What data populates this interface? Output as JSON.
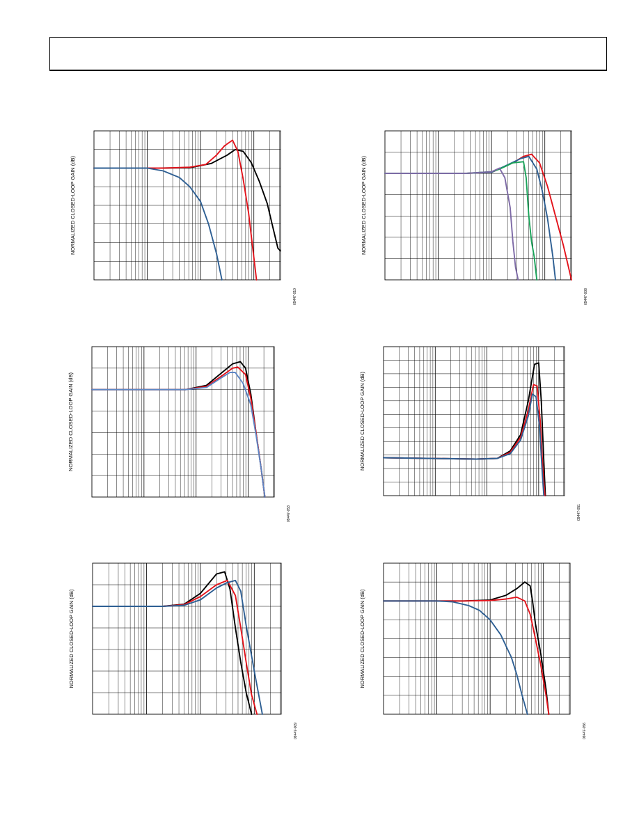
{
  "page": {
    "header_text": ""
  },
  "colors": {
    "black": "#000000",
    "red": "#e3131b",
    "blue": "#2e5f93",
    "light_blue": "#5d86c4",
    "green": "#1aa35a",
    "purple": "#7d6aa6",
    "grid": "#000000"
  },
  "chart_data": [
    {
      "type": "line",
      "ylabel": "NORMALIZED CLOSED-LOOP GAIN (dB)",
      "figure_id": "09447-010",
      "x_scale": "log",
      "xlim": [
        0,
        3.5
      ],
      "ylim": [
        0,
        8
      ],
      "grid": true,
      "series": [
        {
          "color": "black",
          "x": [
            0.0,
            1.2,
            1.8,
            2.2,
            2.5,
            2.65,
            2.8,
            2.95,
            3.1,
            3.25,
            3.35,
            3.45,
            3.5
          ],
          "y": [
            6.0,
            6.0,
            6.02,
            6.25,
            6.7,
            7.0,
            6.9,
            6.3,
            5.3,
            4.1,
            2.9,
            1.7,
            1.55
          ]
        },
        {
          "color": "red",
          "x": [
            0.0,
            1.3,
            1.8,
            2.1,
            2.3,
            2.45,
            2.6,
            2.7,
            2.8,
            2.9,
            3.0,
            3.05
          ],
          "y": [
            6.0,
            6.0,
            6.05,
            6.2,
            6.7,
            7.2,
            7.5,
            6.9,
            5.4,
            3.6,
            1.2,
            0.0
          ]
        },
        {
          "color": "blue",
          "x": [
            0.0,
            1.0,
            1.3,
            1.6,
            1.8,
            2.0,
            2.15,
            2.3,
            2.4
          ],
          "y": [
            6.0,
            6.0,
            5.85,
            5.5,
            5.0,
            4.2,
            3.0,
            1.4,
            0.0
          ]
        }
      ]
    },
    {
      "type": "line",
      "ylabel": "NORMALIZED CLOSED-LOOP GAIN (dB)",
      "figure_id": "09447-008",
      "x_scale": "log",
      "xlim": [
        0,
        3.5
      ],
      "ylim": [
        0,
        7
      ],
      "grid": true,
      "series": [
        {
          "color": "red",
          "x": [
            0.0,
            1.5,
            2.0,
            2.4,
            2.6,
            2.75,
            2.9,
            3.05,
            3.2,
            3.35,
            3.5
          ],
          "y": [
            5.0,
            5.0,
            5.05,
            5.5,
            5.8,
            5.9,
            5.5,
            4.4,
            3.0,
            1.6,
            0.0
          ]
        },
        {
          "color": "blue",
          "x": [
            0.0,
            1.5,
            2.0,
            2.3,
            2.55,
            2.7,
            2.85,
            2.95,
            3.05,
            3.15,
            3.2
          ],
          "y": [
            5.0,
            5.0,
            5.05,
            5.4,
            5.7,
            5.8,
            5.2,
            4.2,
            2.9,
            1.1,
            0.0
          ]
        },
        {
          "color": "green",
          "x": [
            0.0,
            1.5,
            2.0,
            2.15,
            2.4,
            2.6,
            2.65,
            2.7,
            2.75,
            2.8,
            2.85
          ],
          "y": [
            5.0,
            5.0,
            5.08,
            5.2,
            5.5,
            5.55,
            4.8,
            3.0,
            1.8,
            1.1,
            0.0
          ]
        },
        {
          "color": "purple",
          "x": [
            0.0,
            1.5,
            2.0,
            2.15,
            2.25,
            2.35,
            2.4,
            2.45,
            2.5
          ],
          "y": [
            5.0,
            5.0,
            5.08,
            5.25,
            4.8,
            3.4,
            1.8,
            0.6,
            0.0
          ]
        }
      ]
    },
    {
      "type": "line",
      "ylabel": "NORMALIZED CLOSED-LOOP GAIN (dB)",
      "figure_id": "09447-053",
      "x_scale": "log",
      "xlim": [
        0,
        3.5
      ],
      "ylim": [
        0,
        7
      ],
      "grid": true,
      "series": [
        {
          "color": "black",
          "x": [
            0.0,
            1.8,
            2.2,
            2.5,
            2.7,
            2.85,
            2.95,
            3.05,
            3.15,
            3.25,
            3.32
          ],
          "y": [
            5.0,
            5.0,
            5.2,
            5.8,
            6.2,
            6.3,
            6.0,
            4.8,
            3.0,
            1.3,
            0.0
          ]
        },
        {
          "color": "red",
          "x": [
            0.0,
            1.8,
            2.2,
            2.5,
            2.7,
            2.8,
            2.95,
            3.05,
            3.15,
            3.25,
            3.32
          ],
          "y": [
            5.0,
            5.0,
            5.15,
            5.65,
            6.0,
            6.05,
            5.7,
            4.6,
            3.0,
            1.3,
            0.0
          ]
        },
        {
          "color": "light_blue",
          "x": [
            0.0,
            1.8,
            2.2,
            2.45,
            2.65,
            2.75,
            2.9,
            3.05,
            3.15,
            3.25,
            3.32
          ],
          "y": [
            5.0,
            5.0,
            5.1,
            5.5,
            5.8,
            5.8,
            5.3,
            4.3,
            2.9,
            1.3,
            0.0
          ]
        }
      ]
    },
    {
      "type": "line",
      "ylabel": "NORMALIZED CLOSED-LOOP GAIN (dB)",
      "figure_id": "09447-051",
      "x_scale": "log",
      "xlim": [
        0,
        3.5
      ],
      "ylim": [
        0,
        11
      ],
      "grid": true,
      "series": [
        {
          "color": "black",
          "x": [
            0.0,
            1.8,
            2.2,
            2.45,
            2.65,
            2.8,
            2.92,
            3.0,
            3.05,
            3.1,
            3.13
          ],
          "y": [
            2.8,
            2.7,
            2.75,
            3.3,
            4.5,
            7.0,
            9.7,
            9.8,
            7.0,
            2.5,
            0.0
          ]
        },
        {
          "color": "red",
          "x": [
            0.0,
            1.8,
            2.2,
            2.45,
            2.65,
            2.8,
            2.9,
            2.97,
            3.03,
            3.08,
            3.12
          ],
          "y": [
            2.8,
            2.7,
            2.75,
            3.2,
            4.3,
            6.3,
            8.2,
            8.1,
            5.5,
            2.0,
            0.0
          ]
        },
        {
          "color": "blue",
          "x": [
            0.0,
            1.8,
            2.2,
            2.45,
            2.65,
            2.8,
            2.88,
            2.95,
            3.02,
            3.07,
            3.1
          ],
          "y": [
            2.8,
            2.7,
            2.75,
            3.1,
            4.1,
            5.9,
            7.5,
            7.3,
            5.0,
            1.6,
            0.0
          ]
        }
      ]
    },
    {
      "type": "line",
      "ylabel": "NORMALIZED CLOSED-LOOP GAIN (dB)",
      "figure_id": "09447-009",
      "x_scale": "log",
      "xlim": [
        0,
        3.5
      ],
      "ylim": [
        0,
        7
      ],
      "grid": true,
      "series": [
        {
          "color": "black",
          "x": [
            0.0,
            1.3,
            1.7,
            2.0,
            2.3,
            2.45,
            2.55,
            2.65,
            2.75,
            2.85,
            2.95
          ],
          "y": [
            5.0,
            5.0,
            5.1,
            5.6,
            6.5,
            6.6,
            5.8,
            4.0,
            2.4,
            1.0,
            0.0
          ]
        },
        {
          "color": "red",
          "x": [
            0.0,
            1.3,
            1.7,
            2.0,
            2.3,
            2.5,
            2.65,
            2.75,
            2.85,
            2.95,
            3.05
          ],
          "y": [
            5.0,
            5.0,
            5.08,
            5.45,
            6.0,
            6.2,
            5.5,
            4.0,
            2.4,
            0.9,
            0.0
          ]
        },
        {
          "color": "blue",
          "x": [
            0.0,
            1.3,
            1.7,
            2.0,
            2.3,
            2.5,
            2.65,
            2.75,
            2.85,
            3.0,
            3.15
          ],
          "y": [
            5.0,
            5.0,
            5.05,
            5.3,
            5.85,
            6.1,
            6.2,
            5.7,
            4.1,
            2.0,
            0.0
          ]
        }
      ]
    },
    {
      "type": "line",
      "ylabel": "NORMALIZED CLOSED-LOOP GAIN (dB)",
      "figure_id": "09447-056",
      "x_scale": "log",
      "xlim": [
        0,
        3.5
      ],
      "ylim": [
        0,
        8
      ],
      "grid": true,
      "series": [
        {
          "color": "black",
          "x": [
            0.0,
            1.5,
            2.0,
            2.3,
            2.5,
            2.65,
            2.75,
            2.8,
            2.85,
            2.95,
            3.05,
            3.1
          ],
          "y": [
            6.0,
            6.0,
            6.05,
            6.3,
            6.65,
            7.0,
            6.8,
            5.9,
            4.8,
            3.2,
            1.3,
            0.0
          ]
        },
        {
          "color": "red",
          "x": [
            0.0,
            1.5,
            2.0,
            2.3,
            2.5,
            2.65,
            2.75,
            2.85,
            2.95,
            3.05,
            3.1
          ],
          "y": [
            6.0,
            6.0,
            6.02,
            6.1,
            6.2,
            6.0,
            5.3,
            4.0,
            2.6,
            1.0,
            0.0
          ]
        },
        {
          "color": "blue",
          "x": [
            0.0,
            1.0,
            1.3,
            1.6,
            1.8,
            2.0,
            2.2,
            2.4,
            2.5,
            2.6,
            2.7
          ],
          "y": [
            6.0,
            6.0,
            5.95,
            5.75,
            5.5,
            5.0,
            4.2,
            3.0,
            2.1,
            1.0,
            0.0
          ]
        }
      ]
    }
  ]
}
